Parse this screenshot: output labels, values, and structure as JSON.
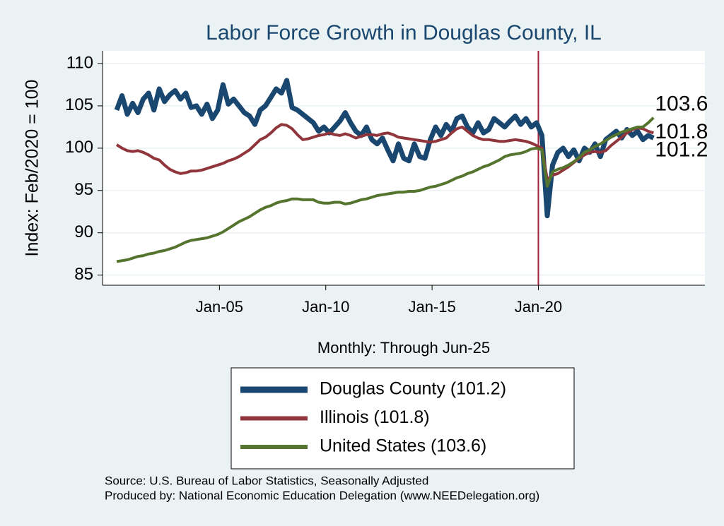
{
  "chart_data": {
    "type": "line",
    "title": "Labor Force Growth in Douglas  County, IL",
    "x_label": "Monthly: Through Jun-25",
    "y_label": "Index: Feb/2020 = 100",
    "source": "Source: U.S. Bureau of Labor Statistics, Seasonally Adjusted",
    "credit": "Produced by: National Economic Education Delegation (www.NEEDelegation.org)",
    "x": [
      "Mar-00",
      "Jun-00",
      "Sep-00",
      "Dec-00",
      "Mar-01",
      "Jun-01",
      "Sep-01",
      "Dec-01",
      "Mar-02",
      "Jun-02",
      "Sep-02",
      "Dec-02",
      "Mar-03",
      "Jun-03",
      "Sep-03",
      "Dec-03",
      "Mar-04",
      "Jun-04",
      "Sep-04",
      "Dec-04",
      "Mar-05",
      "Jun-05",
      "Sep-05",
      "Dec-05",
      "Mar-06",
      "Jun-06",
      "Sep-06",
      "Dec-06",
      "Mar-07",
      "Jun-07",
      "Sep-07",
      "Dec-07",
      "Mar-08",
      "Jun-08",
      "Sep-08",
      "Dec-08",
      "Mar-09",
      "Jun-09",
      "Sep-09",
      "Dec-09",
      "Mar-10",
      "Jun-10",
      "Sep-10",
      "Dec-10",
      "Mar-11",
      "Jun-11",
      "Sep-11",
      "Dec-11",
      "Mar-12",
      "Jun-12",
      "Sep-12",
      "Dec-12",
      "Mar-13",
      "Jun-13",
      "Sep-13",
      "Dec-13",
      "Mar-14",
      "Jun-14",
      "Sep-14",
      "Dec-14",
      "Mar-15",
      "Jun-15",
      "Sep-15",
      "Dec-15",
      "Mar-16",
      "Jun-16",
      "Sep-16",
      "Dec-16",
      "Mar-17",
      "Jun-17",
      "Sep-17",
      "Dec-17",
      "Mar-18",
      "Jun-18",
      "Sep-18",
      "Dec-18",
      "Mar-19",
      "Jun-19",
      "Sep-19",
      "Dec-19",
      "Mar-20",
      "Jun-20",
      "Sep-20",
      "Dec-20",
      "Mar-21",
      "Jun-21",
      "Sep-21",
      "Dec-21",
      "Mar-22",
      "Jun-22",
      "Sep-22",
      "Dec-22",
      "Mar-23",
      "Jun-23",
      "Sep-23",
      "Dec-23",
      "Mar-24",
      "Jun-24",
      "Sep-24",
      "Dec-24",
      "Mar-25",
      "Jun-25"
    ],
    "series": [
      {
        "name": "Douglas  County (101.2)",
        "color": "#1a476f",
        "width": 7,
        "values": [
          104.5,
          106.2,
          104.0,
          105.3,
          104.2,
          105.8,
          106.5,
          104.5,
          107.0,
          105.5,
          106.3,
          106.8,
          105.8,
          106.5,
          104.8,
          105.0,
          104.0,
          105.2,
          103.5,
          104.5,
          107.5,
          105.2,
          105.8,
          105.0,
          104.2,
          103.8,
          102.8,
          104.5,
          105.0,
          106.0,
          107.0,
          106.5,
          108.0,
          104.8,
          104.5,
          104.0,
          103.5,
          103.0,
          102.0,
          102.5,
          101.8,
          102.5,
          103.2,
          104.2,
          103.0,
          102.0,
          101.5,
          102.5,
          101.0,
          100.5,
          101.2,
          99.8,
          98.5,
          100.5,
          98.8,
          98.5,
          100.5,
          99.0,
          98.8,
          101.0,
          102.5,
          101.5,
          102.8,
          102.0,
          103.5,
          103.8,
          102.5,
          101.8,
          103.0,
          101.8,
          102.2,
          103.5,
          103.0,
          102.5,
          103.2,
          103.8,
          102.8,
          103.5,
          102.5,
          103.0,
          101.5,
          92.0,
          98.0,
          99.5,
          100.0,
          99.0,
          99.8,
          98.5,
          100.0,
          99.5,
          100.5,
          99.0,
          101.0,
          101.5,
          102.0,
          101.2,
          102.2,
          101.5,
          102.0,
          101.0,
          101.5,
          101.2
        ]
      },
      {
        "name": "Illinois (101.8)",
        "color": "#90353b",
        "width": 4,
        "values": [
          100.4,
          100.0,
          99.7,
          99.6,
          99.7,
          99.5,
          99.2,
          98.8,
          98.6,
          98.0,
          97.5,
          97.2,
          97.0,
          97.1,
          97.3,
          97.3,
          97.4,
          97.6,
          97.8,
          98.0,
          98.2,
          98.5,
          98.7,
          99.0,
          99.4,
          99.8,
          100.4,
          101.0,
          101.3,
          101.8,
          102.4,
          102.8,
          102.7,
          102.3,
          101.6,
          101.0,
          101.1,
          101.3,
          101.5,
          101.6,
          101.8,
          101.6,
          101.5,
          101.7,
          101.5,
          101.2,
          101.4,
          101.6,
          101.6,
          101.5,
          101.7,
          101.8,
          101.6,
          101.3,
          101.2,
          101.1,
          101.0,
          100.9,
          100.8,
          100.7,
          100.8,
          101.0,
          101.2,
          101.8,
          102.3,
          102.5,
          102.0,
          101.5,
          101.2,
          101.0,
          101.0,
          100.9,
          100.8,
          100.8,
          100.9,
          101.0,
          100.9,
          100.8,
          100.6,
          100.3,
          100.0,
          96.3,
          96.8,
          97.0,
          97.4,
          97.8,
          98.3,
          98.8,
          99.2,
          99.5,
          99.6,
          99.5,
          99.7,
          100.3,
          100.8,
          101.3,
          101.8,
          102.2,
          102.4,
          102.3,
          102.0,
          101.8
        ]
      },
      {
        "name": "United States (103.6)",
        "color": "#55752f",
        "width": 4,
        "values": [
          86.6,
          86.7,
          86.8,
          87.0,
          87.2,
          87.3,
          87.5,
          87.6,
          87.8,
          87.9,
          88.1,
          88.3,
          88.6,
          88.9,
          89.1,
          89.2,
          89.3,
          89.4,
          89.6,
          89.8,
          90.1,
          90.5,
          90.9,
          91.3,
          91.6,
          91.9,
          92.3,
          92.7,
          93.0,
          93.2,
          93.5,
          93.7,
          93.8,
          94.0,
          94.0,
          93.9,
          93.9,
          93.9,
          93.6,
          93.5,
          93.5,
          93.6,
          93.6,
          93.4,
          93.5,
          93.7,
          93.9,
          94.0,
          94.2,
          94.4,
          94.5,
          94.6,
          94.7,
          94.8,
          94.8,
          94.9,
          94.9,
          95.0,
          95.2,
          95.4,
          95.5,
          95.7,
          95.9,
          96.2,
          96.5,
          96.7,
          97.0,
          97.2,
          97.5,
          97.8,
          98.0,
          98.3,
          98.6,
          99.0,
          99.2,
          99.3,
          99.4,
          99.6,
          99.9,
          100.0,
          99.8,
          95.5,
          97.2,
          97.5,
          97.7,
          98.0,
          98.4,
          98.9,
          99.5,
          99.8,
          100.2,
          100.5,
          100.9,
          101.3,
          101.6,
          101.9,
          102.1,
          102.3,
          102.5,
          102.5,
          103.0,
          103.6
        ]
      }
    ],
    "xlim": [
      "Jul-99",
      "Nov-27"
    ],
    "xticks": [
      "Jan-05",
      "Jan-10",
      "Jan-15",
      "Jan-20"
    ],
    "ylim": [
      83.8,
      111.5
    ],
    "yticks": [
      85,
      90,
      95,
      100,
      105,
      110
    ],
    "grid": true,
    "vline": "Jan-20",
    "vline_color": "#a0223a",
    "legend": "bottom"
  }
}
